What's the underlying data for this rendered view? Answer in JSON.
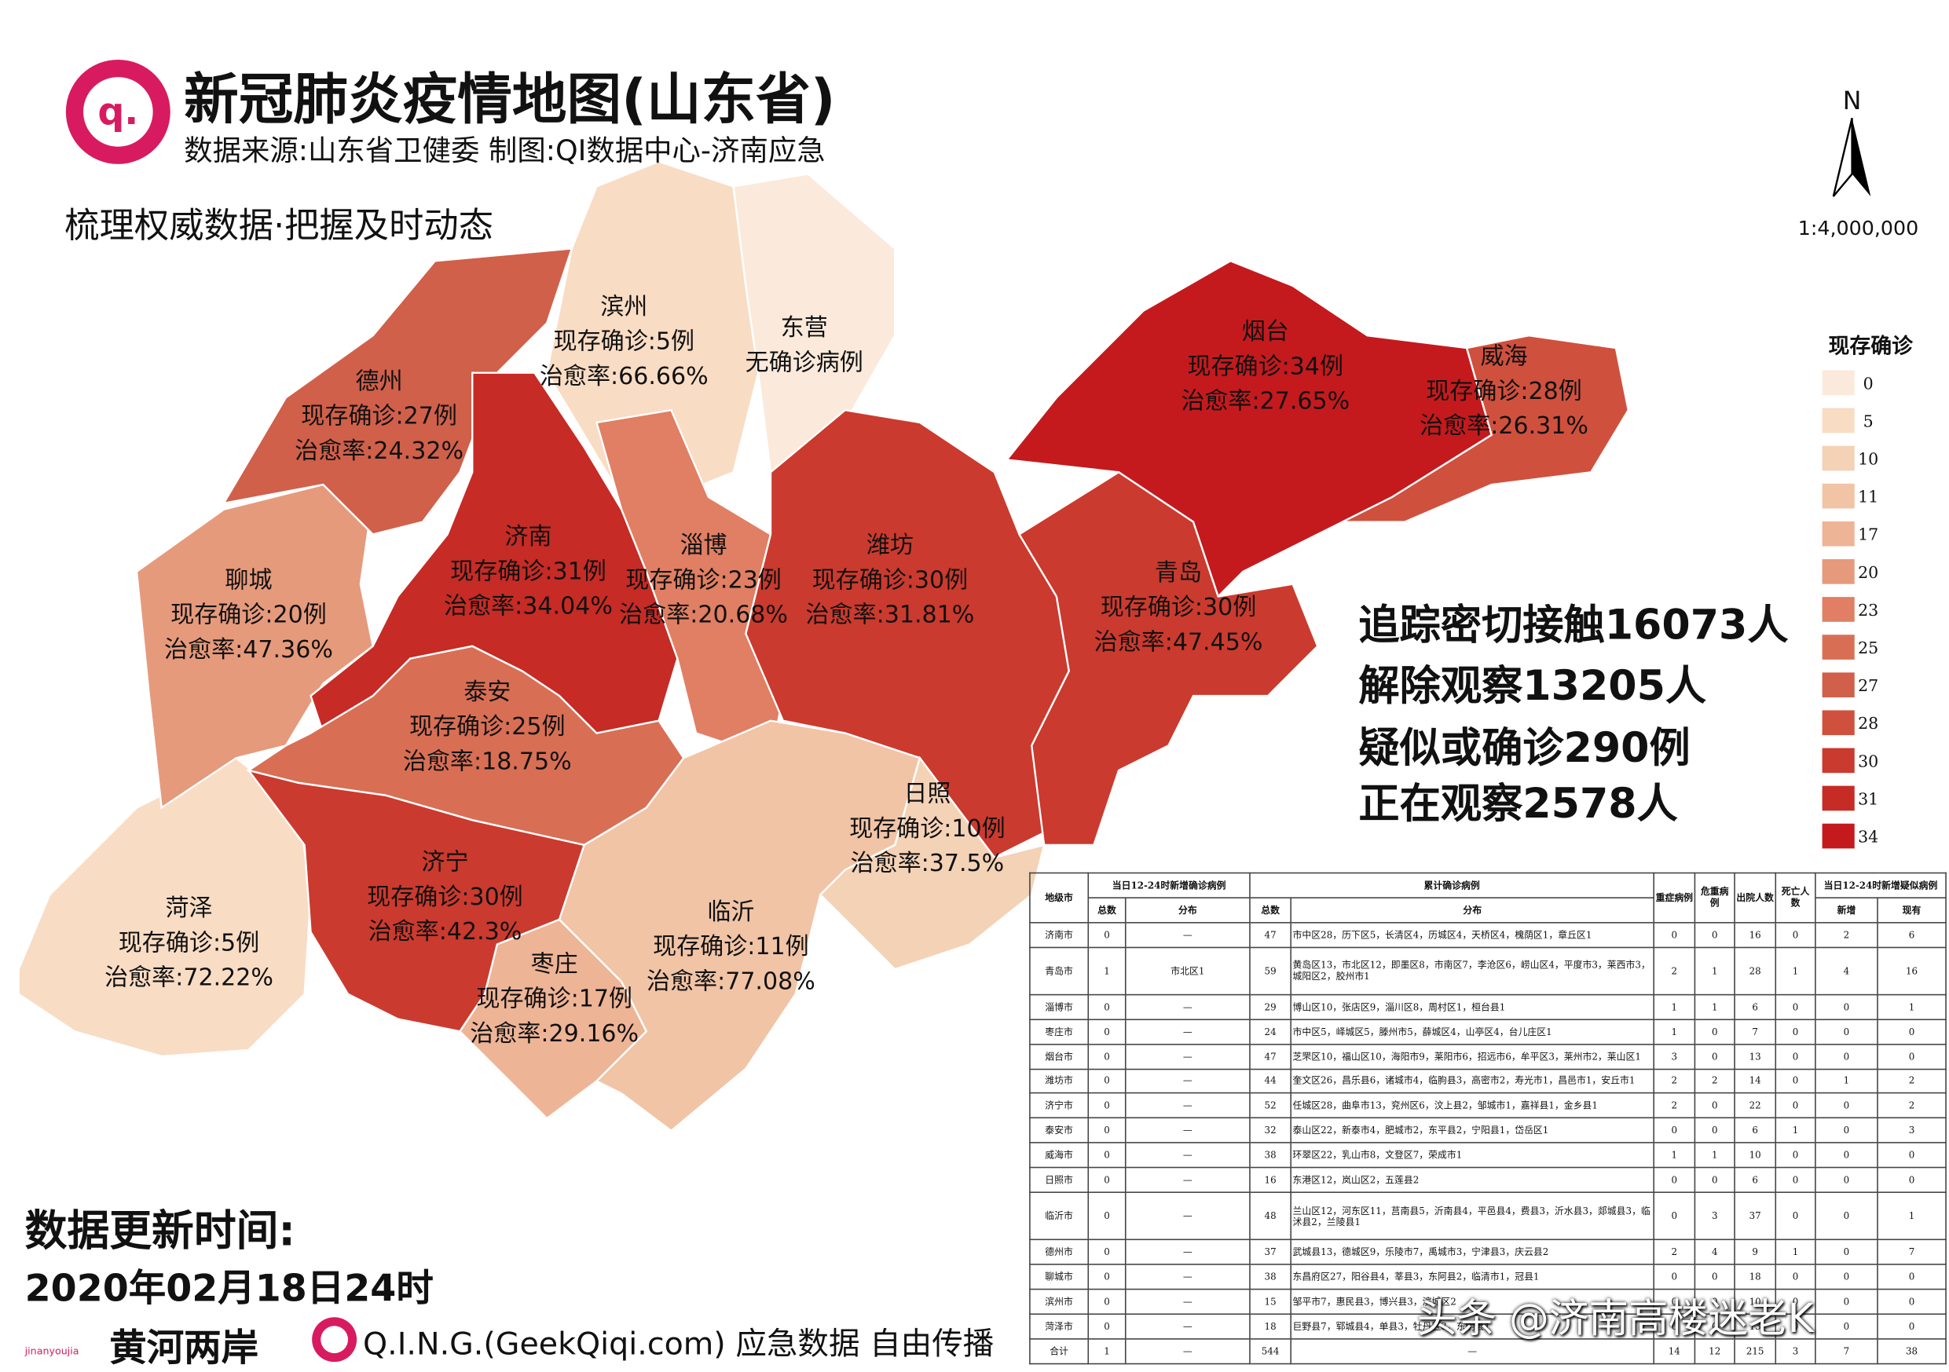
{
  "header": {
    "title": "新冠肺炎疫情地图(山东省)",
    "source": "数据来源:山东省卫健委  制图:QI数据中心-济南应急",
    "slogan": "梳理权威数据·把握及时动态",
    "logo": "q."
  },
  "north": "N",
  "scale": "1:4,000,000",
  "legend": {
    "title": "现存确诊",
    "items": [
      {
        "value": 0,
        "color": "#fbeadb"
      },
      {
        "value": 5,
        "color": "#f8dcc4"
      },
      {
        "value": 10,
        "color": "#f4d2b6"
      },
      {
        "value": 11,
        "color": "#f1c4a6"
      },
      {
        "value": 17,
        "color": "#eeb496"
      },
      {
        "value": 20,
        "color": "#e69a7c"
      },
      {
        "value": 23,
        "color": "#e07f63"
      },
      {
        "value": 25,
        "color": "#d86f55"
      },
      {
        "value": 27,
        "color": "#d0604a"
      },
      {
        "value": 28,
        "color": "#d0503e"
      },
      {
        "value": 30,
        "color": "#cb3a2e"
      },
      {
        "value": 31,
        "color": "#c62b25"
      },
      {
        "value": 34,
        "color": "#c41a1e"
      }
    ]
  },
  "regions": [
    {
      "name": "菏泽",
      "cases": "现存确诊:5例",
      "cure_rate": "治愈率:72.22%",
      "color": "#f8dcc4"
    },
    {
      "name": "聊城",
      "cases": "现存确诊:20例",
      "cure_rate": "治愈率:47.36%",
      "color": "#e69a7c"
    },
    {
      "name": "德州",
      "cases": "现存确诊:27例",
      "cure_rate": "治愈率:24.32%",
      "color": "#d0604a"
    },
    {
      "name": "滨州",
      "cases": "现存确诊:5例",
      "cure_rate": "治愈率:66.66%",
      "color": "#f8dcc4"
    },
    {
      "name": "东营",
      "cases": "无确诊病例",
      "color": "#fbeadb"
    },
    {
      "name": "济南",
      "cases": "现存确诊:31例",
      "cure_rate": "治愈率:34.04%",
      "color": "#c62b25"
    },
    {
      "name": "淄博",
      "cases": "现存确诊:23例",
      "cure_rate": "治愈率:20.68%",
      "color": "#e07f63"
    },
    {
      "name": "潍坊",
      "cases": "现存确诊:30例",
      "cure_rate": "治愈率:31.81%",
      "color": "#cb3a2e"
    },
    {
      "name": "烟台",
      "cases": "现存确诊:34例",
      "cure_rate": "治愈率:27.65%",
      "color": "#c41a1e"
    },
    {
      "name": "威海",
      "cases": "现存确诊:28例",
      "cure_rate": "治愈率:26.31%",
      "color": "#d0503e"
    },
    {
      "name": "青岛",
      "cases": "现存确诊:30例",
      "cure_rate": "治愈率:47.45%",
      "color": "#cb3a2e"
    },
    {
      "name": "泰安",
      "cases": "现存确诊:25例",
      "cure_rate": "治愈率:18.75%",
      "color": "#d86f55"
    },
    {
      "name": "济宁",
      "cases": "现存确诊:30例",
      "cure_rate": "治愈率:42.3%",
      "color": "#cb3a2e"
    },
    {
      "name": "枣庄",
      "cases": "现存确诊:17例",
      "cure_rate": "治愈率:29.16%",
      "color": "#eeb496"
    },
    {
      "name": "临沂",
      "cases": "现存确诊:11例",
      "cure_rate": "治愈率:77.08%",
      "color": "#f1c4a6"
    },
    {
      "name": "日照",
      "cases": "现存确诊:10例",
      "cure_rate": "治愈率:37.5%",
      "color": "#f4d2b6"
    }
  ],
  "stats": [
    "追踪密切接触16073人",
    "解除观察13205人",
    "疑似或确诊290例",
    "正在观察2578人"
  ],
  "table": {
    "group_headers": [
      "当日12-24时新增确诊病例",
      "累计确诊病例",
      "重症病例",
      "危重病例",
      "出院人数",
      "死亡人数",
      "当日12-24时新增疑似病例"
    ],
    "columns": [
      "地级市",
      "总数",
      "分布",
      "总数",
      "分布",
      "新增",
      "现有"
    ],
    "rows": [
      [
        "济南市",
        0,
        "—",
        47,
        "市中区28，历下区5，长清区4，历城区4，天桥区4，槐荫区1，章丘区1",
        0,
        0,
        16,
        0,
        2,
        6
      ],
      [
        "青岛市",
        1,
        "市北区1",
        59,
        "黄岛区13，市北区12，即墨区8，市南区7，李沧区6，崂山区4，平度市3，莱西市3，城阳区2，胶州市1",
        2,
        1,
        28,
        1,
        4,
        16
      ],
      [
        "淄博市",
        0,
        "—",
        29,
        "博山区10，张店区9，淄川区8，周村区1，桓台县1",
        1,
        1,
        6,
        0,
        0,
        1
      ],
      [
        "枣庄市",
        0,
        "—",
        24,
        "市中区5，峄城区5，滕州市5，薛城区4，山亭区4，台儿庄区1",
        1,
        0,
        7,
        0,
        0,
        0
      ],
      [
        "烟台市",
        0,
        "—",
        47,
        "芝罘区10，福山区10，海阳市9，莱阳市6，招远市6，牟平区3，莱州市2，莱山区1",
        3,
        0,
        13,
        0,
        0,
        0
      ],
      [
        "潍坊市",
        0,
        "—",
        44,
        "奎文区26，昌乐县6，诸城市4，临朐县3，高密市2，寿光市1，昌邑市1，安丘市1",
        2,
        2,
        14,
        0,
        1,
        2
      ],
      [
        "济宁市",
        0,
        "—",
        52,
        "任城区28，曲阜市13，兖州区6，汶上县2，邹城市1，嘉祥县1，金乡县1",
        2,
        0,
        22,
        0,
        0,
        2
      ],
      [
        "泰安市",
        0,
        "—",
        32,
        "泰山区22，新泰市4，肥城市2，东平县2，宁阳县1，岱岳区1",
        0,
        0,
        6,
        1,
        0,
        3
      ],
      [
        "威海市",
        0,
        "—",
        38,
        "环翠区22，乳山市8，文登区7，荣成市1",
        1,
        1,
        10,
        0,
        0,
        0
      ],
      [
        "日照市",
        0,
        "—",
        16,
        "东港区12，岚山区2，五莲县2",
        0,
        0,
        6,
        0,
        0,
        0
      ],
      [
        "临沂市",
        0,
        "—",
        48,
        "兰山区12，河东区11，莒南县5，沂南县4，平邑县4，费县3，沂水县3，郯城县3，临沭县2，兰陵县1",
        0,
        3,
        37,
        0,
        0,
        1
      ],
      [
        "德州市",
        0,
        "—",
        37,
        "武城县13，德城区9，乐陵市7，禹城市3，宁津县3，庆云县2",
        2,
        4,
        9,
        1,
        0,
        7
      ],
      [
        "聊城市",
        0,
        "—",
        38,
        "东昌府区27，阳谷县4，莘县3，东阿县2，临清市1，冠县1",
        0,
        0,
        18,
        0,
        0,
        0
      ],
      [
        "滨州市",
        0,
        "—",
        15,
        "邹平市7，惠民县3，博兴县3，滨城区2",
        0,
        0,
        10,
        0,
        0,
        0
      ],
      [
        "菏泽市",
        0,
        "—",
        18,
        "巨野县7，郓城县4，单县3，牡丹区3，东明县1",
        0,
        0,
        13,
        0,
        0,
        0
      ],
      [
        "合计",
        1,
        "—",
        544,
        "—",
        14,
        12,
        215,
        3,
        7,
        38
      ]
    ]
  },
  "footer": {
    "update_label": "数据更新时间:",
    "update_time": "2020年02月18日24时",
    "brand_small": "jinanyoujia",
    "brand": "黄河两岸",
    "credit": "Q.I.N.G.(GeekQiqi.com) 应急数据 自由传播"
  },
  "watermark": "头条 @济南高楼迷老K"
}
